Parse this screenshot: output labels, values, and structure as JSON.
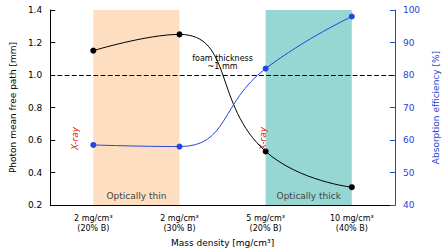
{
  "chart_data": {
    "type": "line",
    "x_label": "Mass density [mg/cm³]",
    "y_label": "Photon mean free path [mm]",
    "y2_label": "Absorption efficiency [%]",
    "categories": [
      "2 mg/cm³\n(20% B)",
      "2 mg/cm³\n(30% B)",
      "5 mg/cm³\n(20% B)",
      "10 mg/cm³\n(40% B)"
    ],
    "ylim": [
      0.2,
      1.4
    ],
    "yticks": [
      0.2,
      0.4,
      0.6,
      0.8,
      {
        "value": 1,
        "label": "1.0"
      },
      1.2,
      1.4
    ],
    "y2lim": [
      40,
      100
    ],
    "y2ticks": [
      40,
      50,
      60,
      70,
      80,
      90,
      100
    ],
    "grid": false,
    "series": [
      {
        "color": "#000000",
        "marker": "circle",
        "values": [
          1.15,
          1.25,
          0.53,
          0.31
        ]
      },
      {
        "color": "#2545d8",
        "marker": "circle",
        "axis": "y2",
        "values": [
          58.5,
          58,
          82,
          98
        ]
      }
    ],
    "regions": [
      {
        "label": "Optically thin",
        "from": "2 mg/cm³\n(20% B)",
        "to": "2 mg/cm³\n(30% B)",
        "color": "#fcd6b0"
      },
      {
        "label": "Optically thick",
        "from": "5 mg/cm³\n(20% B)",
        "to": "10 mg/cm³\n(40% B)",
        "color": "#7ccdc8"
      }
    ],
    "reference_line": {
      "value": 1,
      "label": "foam thickness\n~1 mm"
    },
    "annotations": [
      "X-ray",
      "X-ray"
    ]
  }
}
